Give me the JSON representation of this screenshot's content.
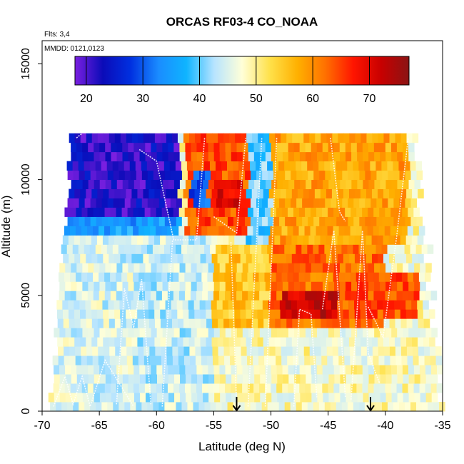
{
  "chart_data": {
    "type": "heatmap",
    "title": "ORCAS RF03-4 CO_NOAA",
    "xlabel": "Latitude (deg N)",
    "ylabel": "Altitude (m)",
    "xlim": [
      -70,
      -35
    ],
    "ylim": [
      0,
      16000
    ],
    "x_ticks": [
      -70,
      -65,
      -60,
      -55,
      -50,
      -45,
      -40,
      -35
    ],
    "x_tick_labels": [
      "-70",
      "-65",
      "-60",
      "-55",
      "-50",
      "-45",
      "-40",
      "-35"
    ],
    "y_ticks": [
      0,
      5000,
      10000,
      15000
    ],
    "y_tick_labels": [
      "0",
      "5000",
      "10000",
      "15000"
    ],
    "annotations": {
      "flights": "Flts: 3,4",
      "dates": "MMDD: 0121,0123"
    },
    "colorbar": {
      "range": [
        18,
        77
      ],
      "ticks": [
        20,
        30,
        40,
        50,
        60,
        70
      ],
      "tick_labels": [
        "20",
        "30",
        "40",
        "50",
        "60",
        "70"
      ],
      "colors": [
        "#7a1fe0",
        "#0b0bb8",
        "#0030e0",
        "#1a8cff",
        "#0fb4ff",
        "#b7e4ff",
        "#ffffd8",
        "#ffe14a",
        "#ffb000",
        "#ff7000",
        "#ff1500",
        "#c80000",
        "#8a1414"
      ]
    },
    "markers": [
      {
        "latitude": -53,
        "label": "down-arrow"
      },
      {
        "latitude": -41.3,
        "label": "down-arrow"
      }
    ],
    "coverage": {
      "lat_range": [
        -69.3,
        -35.2
      ],
      "alt_range": [
        0,
        12000
      ],
      "row_height_m": 400
    },
    "regions": [
      {
        "lat": [
          -68,
          -58
        ],
        "alt": [
          8400,
          12000
        ],
        "value": 22
      },
      {
        "lat": [
          -68.5,
          -58
        ],
        "alt": [
          7600,
          8400
        ],
        "value": 35
      },
      {
        "lat": [
          -69,
          -62
        ],
        "alt": [
          0,
          7600
        ],
        "value": 45
      },
      {
        "lat": [
          -62,
          -55
        ],
        "alt": [
          0,
          7600
        ],
        "value": 44
      },
      {
        "lat": [
          -57.5,
          -52
        ],
        "alt": [
          7600,
          12000
        ],
        "value": 64
      },
      {
        "lat": [
          -57,
          -55.5
        ],
        "alt": [
          8800,
          10400
        ],
        "value": 30
      },
      {
        "lat": [
          -55,
          -52.5
        ],
        "alt": [
          8800,
          10000
        ],
        "value": 70
      },
      {
        "lat": [
          -52,
          -50
        ],
        "alt": [
          7200,
          12000
        ],
        "value": 40
      },
      {
        "lat": [
          -50,
          -38
        ],
        "alt": [
          7200,
          12000
        ],
        "value": 58
      },
      {
        "lat": [
          -55,
          -50
        ],
        "alt": [
          3600,
          7200
        ],
        "value": 55
      },
      {
        "lat": [
          -50,
          -40
        ],
        "alt": [
          3600,
          7200
        ],
        "value": 62
      },
      {
        "lat": [
          -49,
          -44
        ],
        "alt": [
          4000,
          5200
        ],
        "value": 72
      },
      {
        "lat": [
          -44,
          -37
        ],
        "alt": [
          4000,
          6000
        ],
        "value": 64
      },
      {
        "lat": [
          -55,
          -36
        ],
        "alt": [
          0,
          3600
        ],
        "value": 48
      }
    ]
  }
}
